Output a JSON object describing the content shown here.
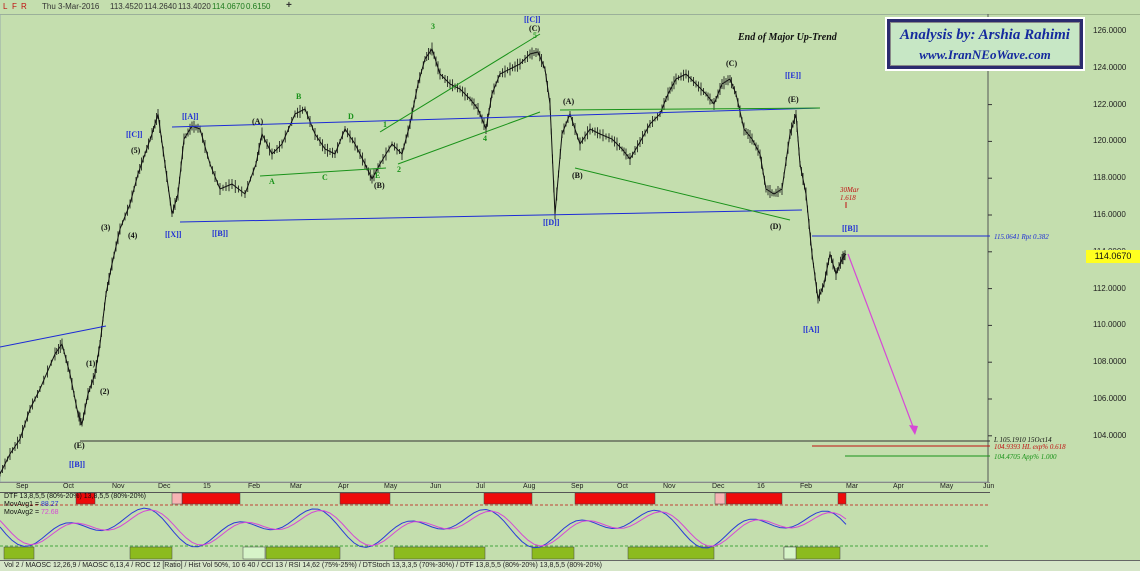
{
  "toolbar": {
    "flags": [
      "L",
      "F",
      "R"
    ],
    "date": "Thu 3-Mar-2016",
    "open": "113.4520",
    "high": "114.2640",
    "low": "113.4020",
    "close": "114.0670",
    "change": "0.6150",
    "plus_button": "+"
  },
  "price_axis": [
    "126.0000",
    "124.0000",
    "122.0000",
    "120.0000",
    "118.0000",
    "116.0000",
    "114.0000",
    "112.0000",
    "110.0000",
    "108.0000",
    "106.0000",
    "104.0000"
  ],
  "current_price": "114.0670",
  "time_axis": [
    "Sep",
    "Oct",
    "Nov",
    "Dec",
    "15",
    "Feb",
    "Mar",
    "Apr",
    "May",
    "Jun",
    "Jul",
    "Aug",
    "Sep",
    "Oct",
    "Nov",
    "Dec",
    "16",
    "Feb",
    "Mar",
    "Apr",
    "May",
    "Jun"
  ],
  "analysis": {
    "title": "Analysis by: Arshia Rahimi",
    "url": "www.IranNEoWave.com"
  },
  "annotation": "End of Major Up-Trend",
  "levels": {
    "rpt": "115.0641 Rpt 0.382",
    "l": "L 105.1910 15Oct14",
    "exp": "104.9393 HL exp% 0.618",
    "app": "104.4705 App% 1.000"
  },
  "time_note": {
    "date": "30Mar",
    "ratio": "1.618"
  },
  "wave_labels": {
    "c_bracket": "[[C]]",
    "a_bracket": "[[A]]",
    "x_bracket": "[[X]]",
    "b_bracket_left": "[[B]]",
    "b_bracket_low": "[[B]]",
    "cc_top": "[[C]]",
    "d_bracket": "[[D]]",
    "e_bracket": "[[E]]",
    "b_bracket_right": "[[B]]",
    "a_bracket_right": "[[A]]",
    "w1": "(1)",
    "w2": "(2)",
    "w3": "(3)",
    "w4": "(4)",
    "w5": "(5)",
    "e_low": "(E)",
    "a_paren": "(A)",
    "b_paren": "(B)",
    "c_paren": "(C)",
    "a_paren2": "(A)",
    "b_paren2": "(B)",
    "c_paren2": "(C)",
    "d_paren2": "(D)",
    "e_paren2": "(E)",
    "g_a": "A",
    "g_b": "B",
    "g_c": "C",
    "g_d": "D",
    "g_e": "E",
    "g1": "1",
    "g2": "2",
    "g3": "3",
    "g4": "4",
    "g5": "5"
  },
  "oscillator": {
    "dtf": "DTF 13,8,5,5 (80%-20%) 13,8,5,5 (80%-20%)",
    "movavg1_label": "MovAvg1 = ",
    "movavg1": "88.27",
    "movavg2_label": "MovAvg2 = ",
    "movavg2": "72.68"
  },
  "bottom_bar": "Vol 2 / MAOSC 12,26,9 / MAOSC 6,13,4 / ROC 12 [Ratio] / Hist Vol 50%, 10 6 40 / CCI 13 / RSI 14,62 (75%-25%) / DTStoch 13,3,3,5 (70%-30%) / DTF 13,8,5,5 (80%-20%) 13,8,5,5 (80%-20%)",
  "colors": {
    "background": "#c4deae",
    "trend_line": "#1d2bd6",
    "green_line": "#199219",
    "projection": "#d648d6",
    "price_tag": "#ffff20"
  }
}
